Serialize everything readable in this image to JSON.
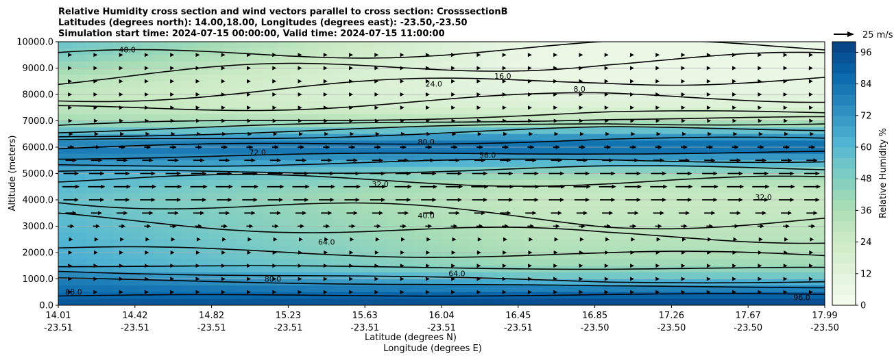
{
  "chart_data": {
    "type": "heatmap",
    "title_lines": [
      "Relative Humidity cross section and wind vectors parallel to cross section: CrosssectionB",
      "Latitudes (degrees north): 14.00,18.00, Longitudes (degrees east): -23.50,-23.50",
      "Simulation start time: 2024-07-15 00:00:00, Valid time: 2024-07-15 11:00:00"
    ],
    "ylabel": "Altitude (meters)",
    "xlabel_lat": "Latitude (degrees N)",
    "xlabel_lon": "Longitude (degrees E)",
    "ylim": [
      0,
      10000
    ],
    "y_ticks": [
      "0.0",
      "1000.0",
      "2000.0",
      "3000.0",
      "4000.0",
      "5000.0",
      "6000.0",
      "7000.0",
      "8000.0",
      "9000.0",
      "10000.0"
    ],
    "x_ticks": [
      {
        "lat": "14.01",
        "lon": "-23.51"
      },
      {
        "lat": "14.42",
        "lon": "-23.51"
      },
      {
        "lat": "14.82",
        "lon": "-23.51"
      },
      {
        "lat": "15.23",
        "lon": "-23.51"
      },
      {
        "lat": "15.63",
        "lon": "-23.51"
      },
      {
        "lat": "16.04",
        "lon": "-23.51"
      },
      {
        "lat": "16.45",
        "lon": "-23.51"
      },
      {
        "lat": "16.85",
        "lon": "-23.50"
      },
      {
        "lat": "17.26",
        "lon": "-23.50"
      },
      {
        "lat": "17.67",
        "lon": "-23.50"
      },
      {
        "lat": "17.99",
        "lon": "-23.50"
      }
    ],
    "grid": "horizontal",
    "colorbar": {
      "label": "Relative Humidity %",
      "range": [
        0,
        100
      ],
      "ticks": [
        "0",
        "12",
        "24",
        "36",
        "48",
        "60",
        "72",
        "84",
        "96"
      ],
      "colormap": [
        "#f7fcf0",
        "#e0f3db",
        "#ccebc5",
        "#a8ddb5",
        "#7bccc4",
        "#4eb3d3",
        "#2b8cbe",
        "#0868ac",
        "#084081"
      ]
    },
    "quiver_key": {
      "label": "25 m/s",
      "position": "top-right"
    },
    "rh_profile": {
      "altitude_m": [
        0,
        300,
        600,
        1000,
        1500,
        2000,
        2500,
        3000,
        3500,
        4000,
        4500,
        5000,
        5500,
        6000,
        6500,
        7000,
        7500,
        8000,
        8500,
        9000,
        9500,
        10000
      ],
      "south_end": [
        95,
        88,
        84,
        80,
        66,
        64,
        62,
        60,
        58,
        56,
        60,
        65,
        75,
        82,
        60,
        38,
        30,
        28,
        32,
        40,
        50,
        55
      ],
      "north_end": [
        98,
        92,
        80,
        56,
        40,
        35,
        32,
        30,
        28,
        26,
        30,
        42,
        65,
        90,
        65,
        30,
        16,
        10,
        8,
        6,
        6,
        6
      ]
    },
    "contour_labels": [
      "88.0",
      "80.0",
      "64.0",
      "56.0",
      "40.0",
      "32.0",
      "24.0",
      "16.0",
      "8.0",
      "72.0",
      "48.0",
      "96.0"
    ],
    "wind": {
      "peak_speed_altitude_m": 4500,
      "direction": "northward (positive along section)"
    }
  }
}
